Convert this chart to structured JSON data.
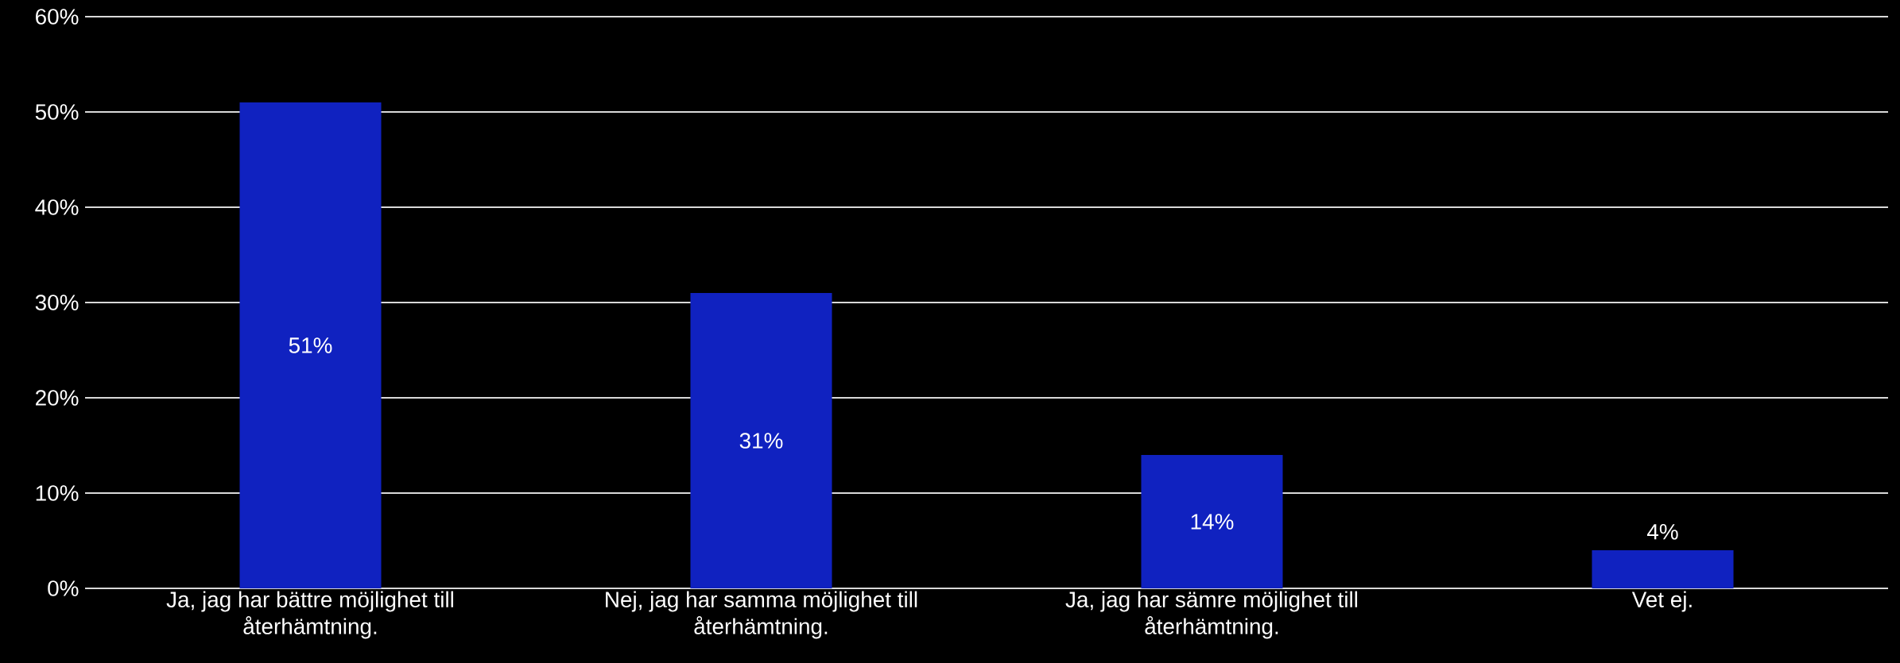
{
  "chart_data": {
    "type": "bar",
    "categories": [
      "Ja, jag har bättre möjlighet till återhämtning.",
      "Nej, jag har samma möjlighet till återhämtning.",
      "Ja, jag har sämre möjlighet till återhämtning.",
      "Vet ej."
    ],
    "values": [
      51,
      31,
      14,
      4
    ],
    "value_labels": [
      "51%",
      "31%",
      "14%",
      "4%"
    ],
    "color": "#1022c0",
    "ylim": [
      0,
      60
    ],
    "yticks": [
      {
        "value": 0,
        "label": "0%"
      },
      {
        "value": 10,
        "label": "10%"
      },
      {
        "value": 20,
        "label": "20%"
      },
      {
        "value": 30,
        "label": "30%"
      },
      {
        "value": 40,
        "label": "40%"
      },
      {
        "value": 50,
        "label": "50%"
      },
      {
        "value": 60,
        "label": "60%"
      }
    ],
    "grid": "y"
  }
}
